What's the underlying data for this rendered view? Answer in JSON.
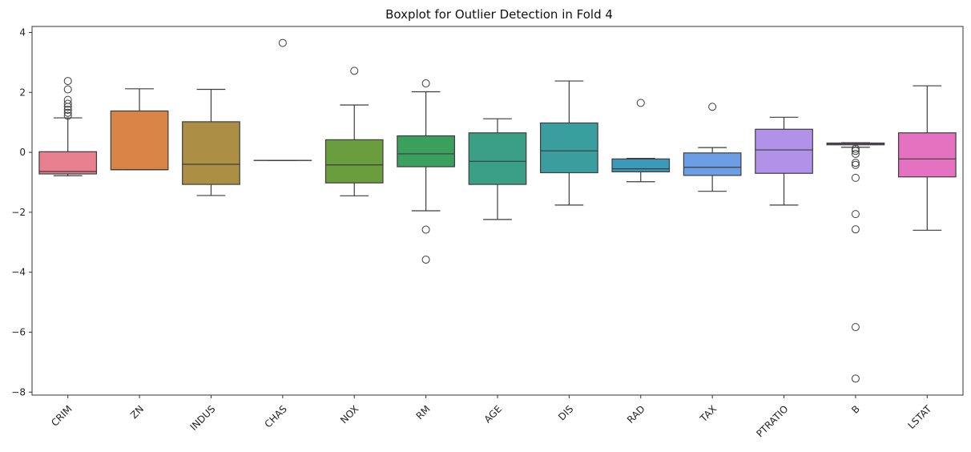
{
  "chart_data": {
    "type": "box",
    "title": "Boxplot for Outlier Detection in Fold 4",
    "xlabel": "",
    "ylabel": "",
    "ylim": [
      -8.1,
      4.2
    ],
    "yticks": [
      4,
      2,
      0,
      -2,
      -4,
      -6,
      -8
    ],
    "grid": false,
    "categories": [
      "CRIM",
      "ZN",
      "INDUS",
      "CHAS",
      "NOX",
      "RM",
      "AGE",
      "DIS",
      "RAD",
      "TAX",
      "PTRATIO",
      "B",
      "LSTAT"
    ],
    "colors": [
      "#e8808f",
      "#d98446",
      "#ad8e45",
      "#8f9d46",
      "#6a9d3e",
      "#3b9f5d",
      "#3b9f85",
      "#3a9d9e",
      "#3b9ab9",
      "#6c9ee5",
      "#b192e8",
      "#dd83e4",
      "#e571c1"
    ],
    "boxes": [
      {
        "q1": -0.72,
        "median": -0.64,
        "q3": 0.02,
        "whisker_low": -0.78,
        "whisker_high": 1.15,
        "outliers": [
          1.22,
          1.32,
          1.42,
          1.52,
          1.62,
          1.75,
          2.1,
          2.38
        ]
      },
      {
        "q1": -0.58,
        "median": -0.58,
        "q3": 1.38,
        "whisker_low": -0.58,
        "whisker_high": 2.12,
        "outliers": []
      },
      {
        "q1": -1.07,
        "median": -0.4,
        "q3": 1.02,
        "whisker_low": -1.44,
        "whisker_high": 2.1,
        "outliers": []
      },
      {
        "q1": -0.27,
        "median": -0.27,
        "q3": -0.27,
        "whisker_low": -0.27,
        "whisker_high": -0.27,
        "outliers": [
          3.65
        ]
      },
      {
        "q1": -1.02,
        "median": -0.42,
        "q3": 0.42,
        "whisker_low": -1.45,
        "whisker_high": 1.58,
        "outliers": [
          2.72
        ]
      },
      {
        "q1": -0.48,
        "median": -0.05,
        "q3": 0.55,
        "whisker_low": -1.95,
        "whisker_high": 2.02,
        "outliers": [
          2.3,
          -2.58,
          -3.58
        ]
      },
      {
        "q1": -1.07,
        "median": -0.3,
        "q3": 0.65,
        "whisker_low": -2.24,
        "whisker_high": 1.12,
        "outliers": []
      },
      {
        "q1": -0.68,
        "median": 0.05,
        "q3": 0.98,
        "whisker_low": -1.76,
        "whisker_high": 2.38,
        "outliers": []
      },
      {
        "q1": -0.65,
        "median": -0.55,
        "q3": -0.22,
        "whisker_low": -0.98,
        "whisker_high": -0.2,
        "outliers": [
          1.65
        ]
      },
      {
        "q1": -0.77,
        "median": -0.5,
        "q3": -0.02,
        "whisker_low": -1.3,
        "whisker_high": 0.16,
        "outliers": [
          1.52
        ]
      },
      {
        "q1": -0.7,
        "median": 0.08,
        "q3": 0.77,
        "whisker_low": -1.76,
        "whisker_high": 1.17,
        "outliers": []
      },
      {
        "q1": 0.25,
        "median": 0.29,
        "q3": 0.31,
        "whisker_low": 0.17,
        "whisker_high": 0.32,
        "outliers": [
          0.12,
          0.05,
          -0.05,
          -0.35,
          -0.42,
          -0.85,
          -2.06,
          -2.57,
          -5.83,
          -7.55
        ]
      },
      {
        "q1": -0.82,
        "median": -0.22,
        "q3": 0.65,
        "whisker_low": -2.6,
        "whisker_high": 2.22,
        "outliers": []
      }
    ]
  }
}
